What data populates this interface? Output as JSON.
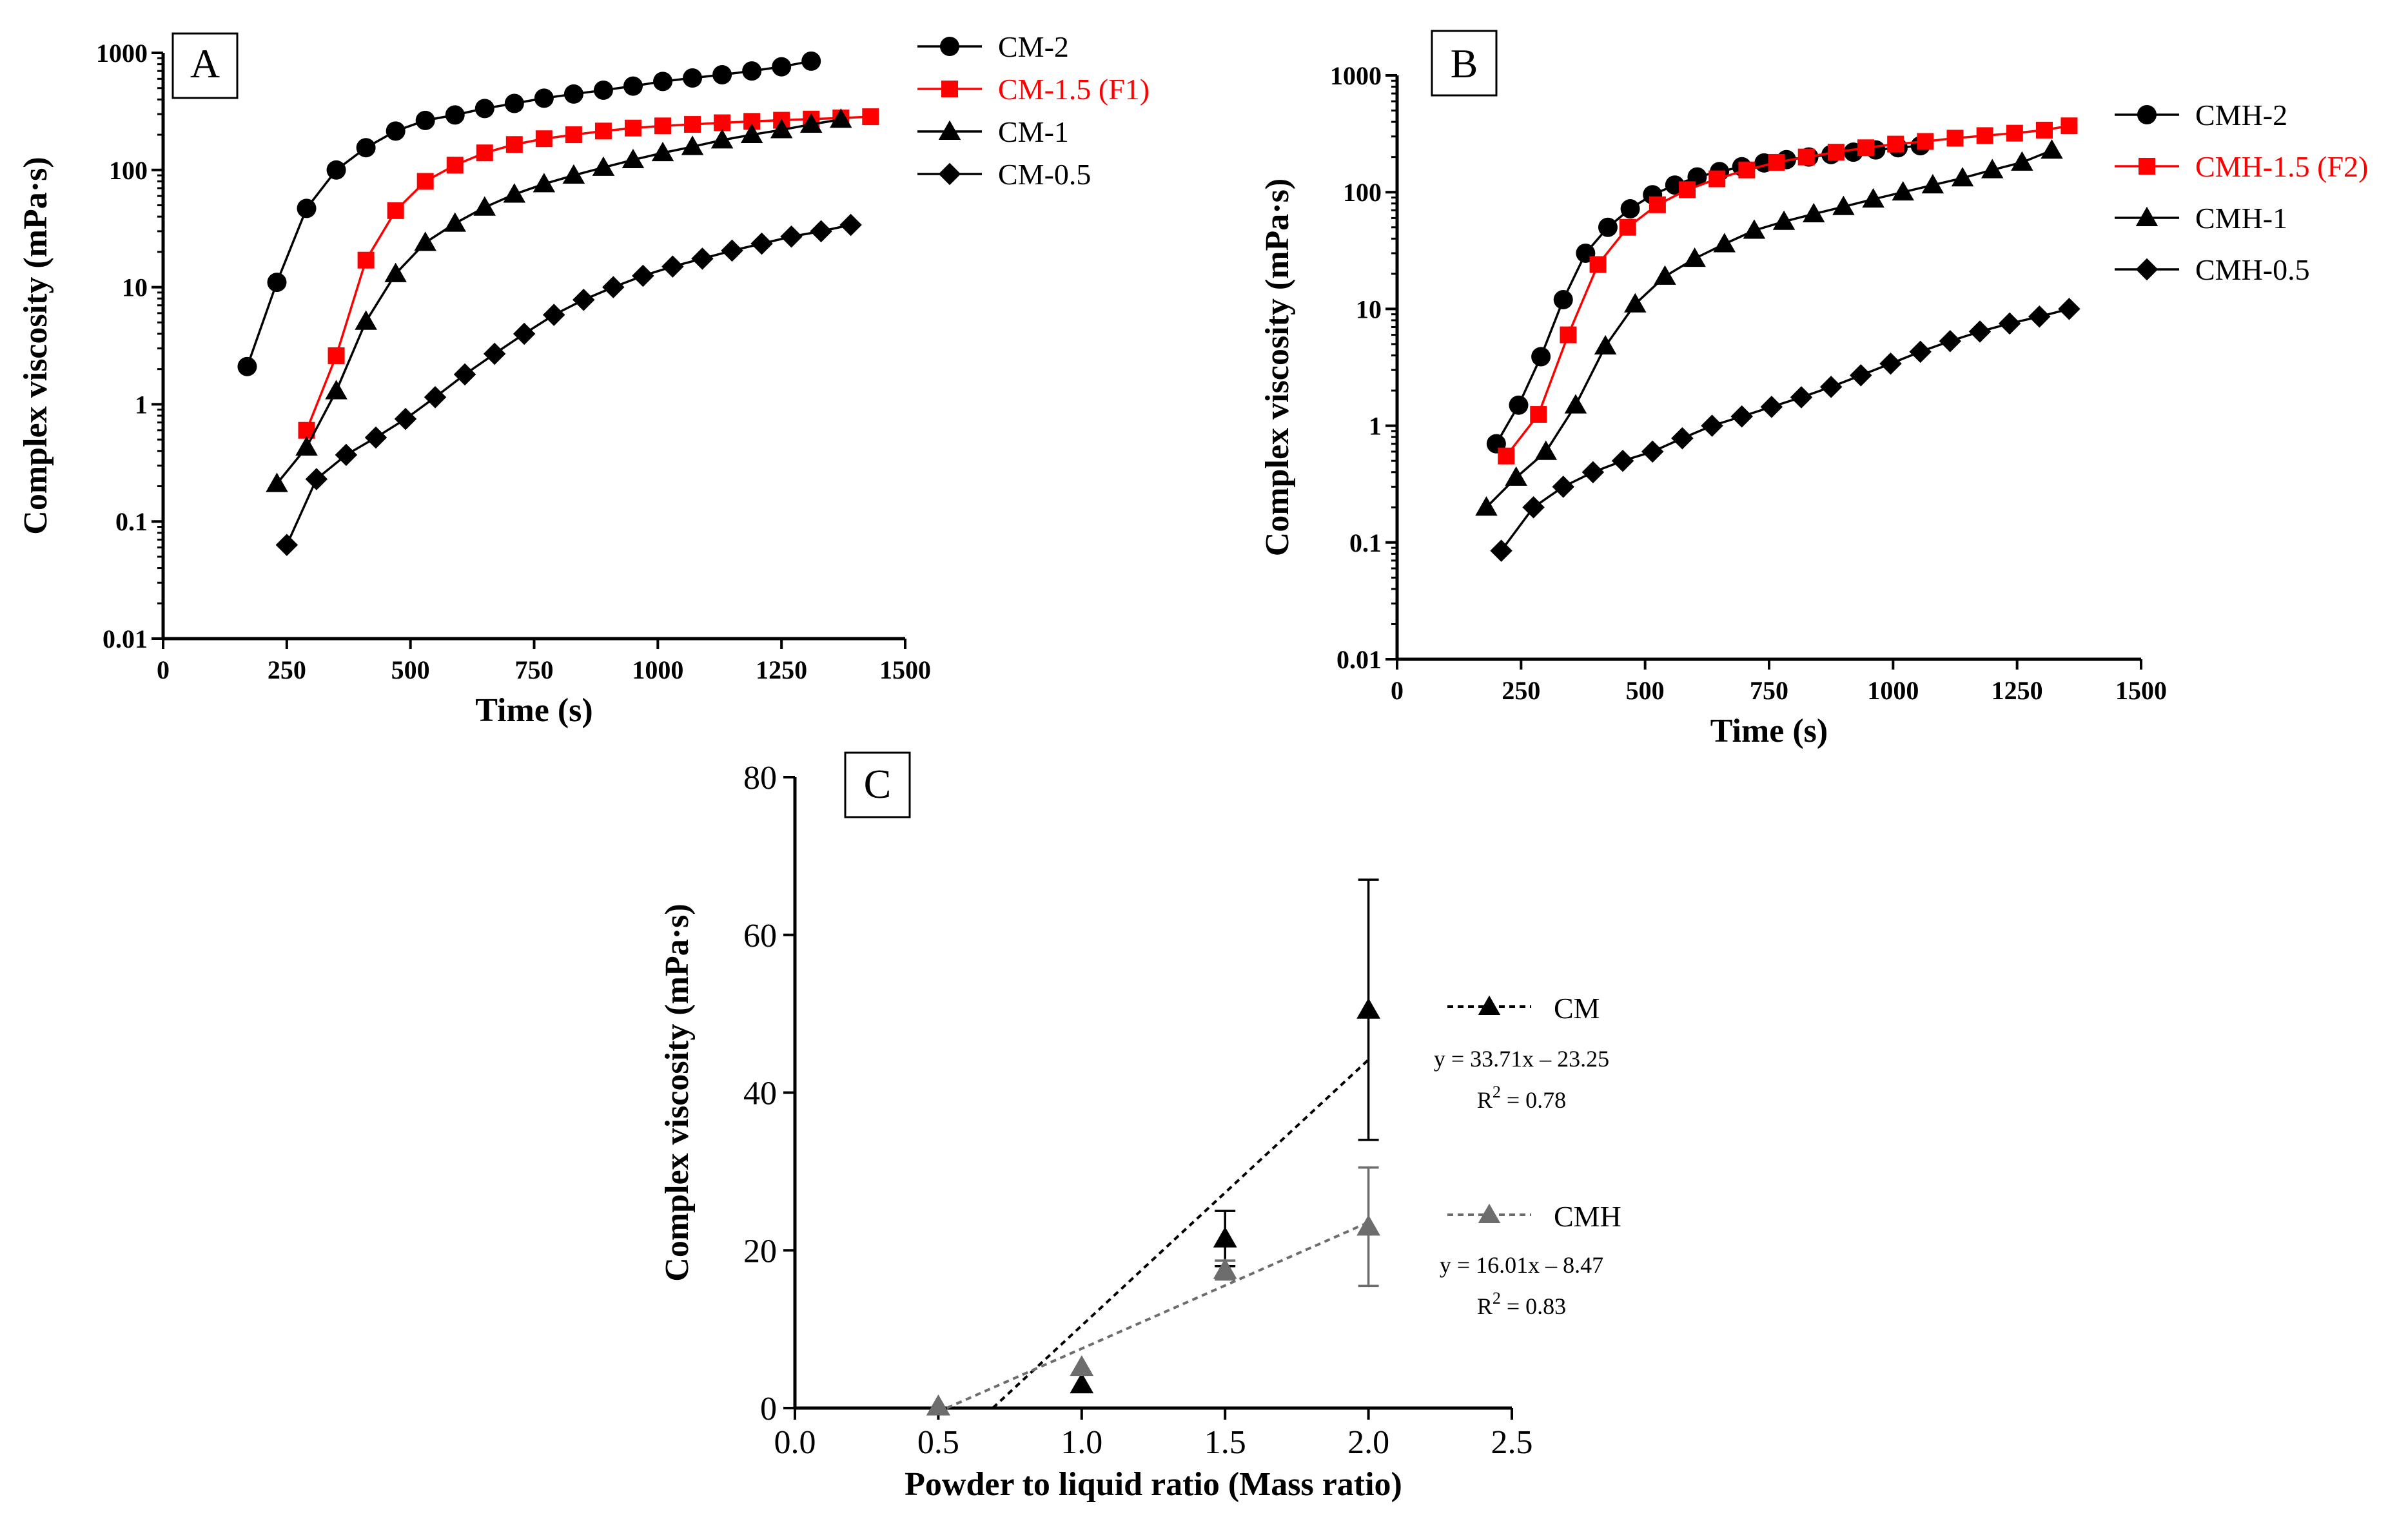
{
  "chart_data": [
    {
      "panel": "A",
      "type": "line",
      "xlabel": "Time (s)",
      "ylabel": "Complex viscosity (mPa·s)",
      "y_scale": "log",
      "xlim": [
        0,
        1500
      ],
      "ylim": [
        0.01,
        1000
      ],
      "xticks": [
        "0",
        "250",
        "500",
        "750",
        "1000",
        "1250",
        "1500"
      ],
      "yticks": [
        "0.01",
        "0.1",
        "1",
        "10",
        "100",
        "1000"
      ],
      "legend_position": "top-right",
      "series": [
        {
          "name": "CM-2",
          "color": "#000000",
          "marker": "circle",
          "x": [
            170,
            230,
            290,
            350,
            410,
            470,
            530,
            590,
            650,
            710,
            770,
            830,
            890,
            950,
            1010,
            1070,
            1130,
            1190,
            1250,
            1310
          ],
          "y": [
            2.1,
            11,
            47,
            100,
            155,
            215,
            265,
            295,
            335,
            370,
            410,
            445,
            480,
            520,
            570,
            610,
            650,
            700,
            760,
            850
          ]
        },
        {
          "name": "CM-1.5 (F1)",
          "color": "#ff0000",
          "marker": "square",
          "x": [
            290,
            350,
            410,
            470,
            530,
            590,
            650,
            710,
            770,
            830,
            890,
            950,
            1010,
            1070,
            1130,
            1190,
            1250,
            1310,
            1370,
            1430
          ],
          "y": [
            0.6,
            2.6,
            17,
            45,
            80,
            110,
            140,
            165,
            185,
            200,
            215,
            228,
            238,
            245,
            253,
            260,
            266,
            272,
            278,
            285
          ]
        },
        {
          "name": "CM-1",
          "color": "#000000",
          "marker": "triangle",
          "x": [
            230,
            290,
            350,
            410,
            470,
            530,
            590,
            650,
            710,
            770,
            830,
            890,
            950,
            1010,
            1070,
            1130,
            1190,
            1250,
            1310,
            1370
          ],
          "y": [
            0.21,
            0.43,
            1.3,
            5.1,
            13,
            24,
            35,
            48,
            62,
            76,
            90,
            105,
            122,
            140,
            158,
            180,
            200,
            220,
            245,
            270
          ]
        },
        {
          "name": "CM-0.5",
          "color": "#000000",
          "marker": "diamond",
          "x": [
            250,
            310,
            370,
            430,
            490,
            550,
            610,
            670,
            730,
            790,
            850,
            910,
            970,
            1030,
            1090,
            1150,
            1210,
            1270,
            1330,
            1390
          ],
          "y": [
            0.063,
            0.23,
            0.37,
            0.52,
            0.75,
            1.15,
            1.8,
            2.7,
            4.0,
            5.8,
            7.8,
            10,
            12.5,
            15,
            17.5,
            20.5,
            23.5,
            27,
            30,
            34
          ]
        }
      ]
    },
    {
      "panel": "B",
      "type": "line",
      "xlabel": "Time (s)",
      "ylabel": "Complex viscosity (mPa·s)",
      "y_scale": "log",
      "xlim": [
        0,
        1500
      ],
      "ylim": [
        0.01,
        1000
      ],
      "xticks": [
        "0",
        "250",
        "500",
        "750",
        "1000",
        "1250",
        "1500"
      ],
      "yticks": [
        "0.01",
        "0.1",
        "1",
        "10",
        "100",
        "1000"
      ],
      "legend_position": "top-right",
      "series": [
        {
          "name": "CMH-2",
          "color": "#000000",
          "marker": "circle",
          "x": [
            200,
            245,
            290,
            335,
            380,
            425,
            470,
            515,
            560,
            605,
            650,
            695,
            740,
            785,
            830,
            875,
            920,
            965,
            1010,
            1055
          ],
          "y": [
            0.7,
            1.5,
            3.9,
            12,
            30,
            50,
            72,
            95,
            115,
            135,
            150,
            165,
            178,
            190,
            200,
            210,
            220,
            230,
            240,
            250
          ]
        },
        {
          "name": "CMH-1.5 (F2)",
          "color": "#ff0000",
          "marker": "square",
          "x": [
            220,
            285,
            345,
            405,
            465,
            525,
            585,
            645,
            705,
            765,
            825,
            885,
            945,
            1005,
            1065,
            1125,
            1185,
            1245,
            1305,
            1355
          ],
          "y": [
            0.55,
            1.25,
            6.0,
            24,
            50,
            78,
            105,
            130,
            155,
            180,
            200,
            220,
            240,
            258,
            272,
            290,
            305,
            320,
            340,
            370
          ]
        },
        {
          "name": "CMH-1",
          "color": "#000000",
          "marker": "triangle",
          "x": [
            180,
            240,
            300,
            360,
            420,
            480,
            540,
            600,
            660,
            720,
            780,
            840,
            900,
            960,
            1020,
            1080,
            1140,
            1200,
            1260,
            1320
          ],
          "y": [
            0.2,
            0.36,
            0.6,
            1.5,
            4.8,
            11,
            19,
            27,
            36,
            47,
            56,
            65,
            75,
            87,
            100,
            115,
            132,
            155,
            180,
            228
          ]
        },
        {
          "name": "CMH-0.5",
          "color": "#000000",
          "marker": "diamond",
          "x": [
            210,
            275,
            335,
            395,
            455,
            515,
            575,
            635,
            695,
            755,
            815,
            875,
            935,
            995,
            1055,
            1115,
            1175,
            1235,
            1295,
            1355
          ],
          "y": [
            0.085,
            0.2,
            0.3,
            0.4,
            0.5,
            0.6,
            0.78,
            1.0,
            1.2,
            1.45,
            1.75,
            2.15,
            2.7,
            3.4,
            4.3,
            5.3,
            6.4,
            7.5,
            8.6,
            10
          ]
        }
      ]
    },
    {
      "panel": "C",
      "type": "scatter",
      "xlabel": "Powder to liquid ratio (Mass ratio)",
      "ylabel": "Complex viscosity (mPa·s)",
      "xlim": [
        0,
        2.5
      ],
      "ylim": [
        0,
        80
      ],
      "xticks": [
        "0.0",
        "0.5",
        "1.0",
        "1.5",
        "2.0",
        "2.5"
      ],
      "yticks": [
        "0",
        "20",
        "40",
        "60",
        "80"
      ],
      "legend_position": "right",
      "series": [
        {
          "name": "CM",
          "color": "#000000",
          "marker": "triangle",
          "x": [
            0.5,
            1.0,
            1.5,
            2.0
          ],
          "y": [
            0.2,
            3.0,
            21.5,
            50.5
          ],
          "err": [
            0,
            0,
            3.5,
            16.5
          ],
          "fit": {
            "slope": 33.71,
            "intercept": -23.25,
            "x_range": [
              0.69,
              2.0
            ],
            "equation": "y = 33.71x – 23.25",
            "r2_prefix": "R",
            "r2_exponent": "2",
            "r2_value": " = 0.78"
          }
        },
        {
          "name": "CMH",
          "color": "#6d6d6d",
          "marker": "triangle",
          "x": [
            0.5,
            1.0,
            1.5,
            2.0
          ],
          "y": [
            0.2,
            5.2,
            17.5,
            23.0
          ],
          "err": [
            0,
            0,
            1.2,
            7.5
          ],
          "fit": {
            "slope": 16.01,
            "intercept": -8.47,
            "x_range": [
              0.53,
              2.0
            ],
            "equation": "y = 16.01x – 8.47",
            "r2_prefix": "R",
            "r2_exponent": "2",
            "r2_value": " = 0.83"
          }
        }
      ]
    }
  ]
}
